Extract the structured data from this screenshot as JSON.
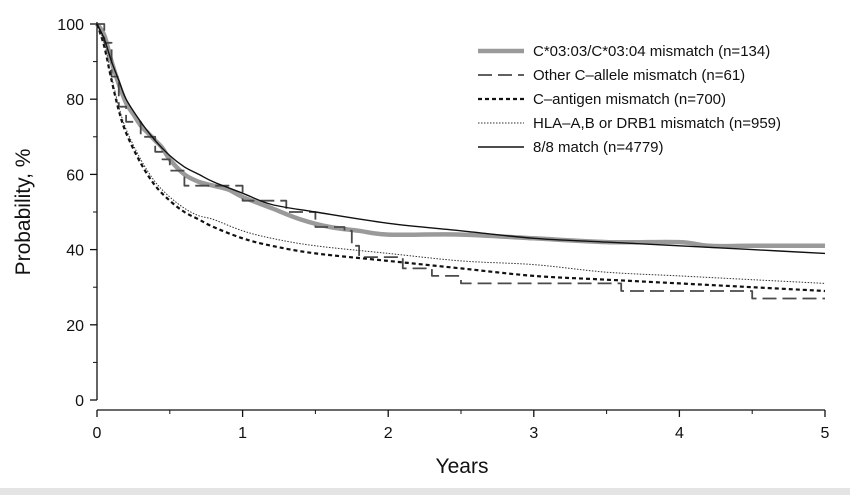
{
  "chart_data": {
    "type": "line",
    "title": "",
    "xlabel": "Years",
    "ylabel": "Probability, %",
    "xlim": [
      0,
      5
    ],
    "ylim": [
      0,
      100
    ],
    "x_ticks": [
      "0",
      "1",
      "2",
      "3",
      "4",
      "5"
    ],
    "y_ticks": [
      "0",
      "20",
      "40",
      "60",
      "80",
      "100"
    ],
    "grid": false,
    "legend_position": "top-right",
    "series": [
      {
        "name": "C*03:03/C*03:04 mismatch (n=134)",
        "style": "thick-gray",
        "color": "#9a9a9a",
        "x": [
          0,
          0.05,
          0.1,
          0.15,
          0.2,
          0.25,
          0.3,
          0.35,
          0.4,
          0.45,
          0.5,
          0.6,
          0.7,
          0.8,
          0.9,
          1.0,
          1.2,
          1.4,
          1.6,
          1.8,
          2.0,
          2.5,
          3.0,
          3.5,
          4.0,
          4.2,
          4.5,
          5.0
        ],
        "values": [
          100,
          97,
          90,
          84,
          79,
          76,
          73,
          71,
          69,
          67,
          64,
          60,
          58,
          57,
          56,
          54,
          51,
          48,
          46,
          45,
          44,
          44,
          43,
          42,
          42,
          41,
          41,
          41
        ]
      },
      {
        "name": "Other C–allele mismatch (n=61)",
        "style": "long-dash",
        "color": "#4a4a4a",
        "x": [
          0,
          0.05,
          0.1,
          0.15,
          0.2,
          0.3,
          0.4,
          0.45,
          0.5,
          0.6,
          0.8,
          1.0,
          1.3,
          1.5,
          1.7,
          1.75,
          1.8,
          2.0,
          2.1,
          2.3,
          2.5,
          3.0,
          3.5,
          3.6,
          4.0,
          4.5,
          5.0
        ],
        "values": [
          100,
          95,
          86,
          78,
          74,
          70,
          66,
          64,
          61,
          57,
          57,
          53,
          50,
          46,
          45,
          41,
          38,
          38,
          35,
          33,
          31,
          31,
          31,
          29,
          29,
          27,
          27
        ]
      },
      {
        "name": "C–antigen mismatch (n=700)",
        "style": "short-dash",
        "color": "#111111",
        "x": [
          0,
          0.05,
          0.1,
          0.15,
          0.2,
          0.3,
          0.4,
          0.5,
          0.6,
          0.7,
          0.8,
          1.0,
          1.2,
          1.5,
          2.0,
          2.5,
          3.0,
          3.5,
          4.0,
          4.5,
          5.0
        ],
        "values": [
          100,
          94,
          85,
          77,
          71,
          63,
          57,
          53,
          50,
          48,
          46,
          43,
          41,
          39,
          37,
          35,
          33,
          32,
          31,
          30,
          29
        ]
      },
      {
        "name": "HLA–A,B or DRB1 mismatch (n=959)",
        "style": "dotted-thin",
        "color": "#333333",
        "x": [
          0,
          0.05,
          0.1,
          0.15,
          0.2,
          0.3,
          0.4,
          0.5,
          0.6,
          0.7,
          0.8,
          1.0,
          1.2,
          1.5,
          2.0,
          2.5,
          3.0,
          3.5,
          4.0,
          4.5,
          5.0
        ],
        "values": [
          100,
          95,
          86,
          78,
          72,
          64,
          58,
          54,
          51,
          49,
          48,
          45,
          43,
          41,
          39,
          37,
          36,
          34,
          33,
          32,
          31
        ]
      },
      {
        "name": "8/8 match (n=4779)",
        "style": "thin-solid",
        "color": "#111111",
        "x": [
          0,
          0.05,
          0.1,
          0.15,
          0.2,
          0.3,
          0.4,
          0.5,
          0.6,
          0.7,
          0.8,
          1.0,
          1.2,
          1.5,
          2.0,
          2.5,
          3.0,
          3.5,
          4.0,
          4.5,
          5.0
        ],
        "values": [
          100,
          96,
          90,
          85,
          80,
          74,
          69,
          65,
          62,
          60,
          58,
          55,
          52,
          50,
          47,
          45,
          43,
          42,
          41,
          40,
          39
        ]
      }
    ]
  }
}
